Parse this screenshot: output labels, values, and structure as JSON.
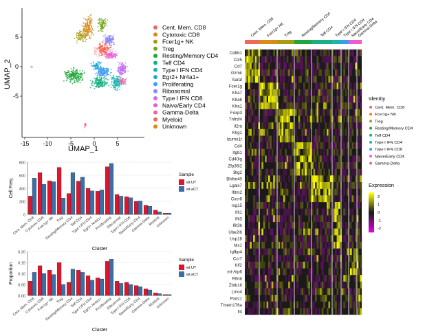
{
  "colors": {
    "wtUT": "#e0142a",
    "wtaCT": "#3a6fa8",
    "clusters": [
      "#f0675c",
      "#d98b1a",
      "#a79c12",
      "#73a51a",
      "#1ea83a",
      "#18b07e",
      "#18b5b0",
      "#1aa8d8",
      "#3d9cf2",
      "#8d86f4",
      "#c26cf2",
      "#ec5ad8",
      "#f461a6"
    ]
  },
  "umap": {
    "xlabel": "UMAP_1",
    "ylabel": "UMAP_2",
    "xticks": [
      "-15",
      "-10",
      "-5",
      "0",
      "5"
    ],
    "yticks": [
      "5",
      "0",
      "-5"
    ],
    "legend": [
      "Cent. Mem. CD8",
      "Cytotoxic CD8",
      "Fcer1g+ NK",
      "Treg",
      "Resting/Memory CD4",
      "Teff CD4",
      "Type I IFN CD4",
      "Egr2+ Nr4a1+",
      "Proliferating",
      "Ribosomal",
      "Type I IFN CD8",
      "Naive/Early CD4",
      "Gamma-Delta",
      "Myeloid",
      "Unknown"
    ]
  },
  "chart_data": [
    {
      "type": "bar",
      "ylabel": "Cell Freq",
      "xlabel": "Cluster",
      "ylim": [
        0,
        800
      ],
      "yticks": [
        0,
        200,
        400,
        600,
        800
      ],
      "legend_title": "Sample",
      "categories": [
        "Cent. Mem. CD8",
        "Cytotoxic CD8",
        "Fcer1g+ NK",
        "Treg",
        "Resting/Memory CD4",
        "Teff CD4",
        "Type I IFN CD4",
        "Egr2+ Nr4a1+",
        "Proliferating",
        "Ribosomal",
        "Type I IFN CD8",
        "Naive/Early CD4",
        "Gamma-Delta",
        "Myeloid",
        "Unknown"
      ],
      "series": [
        {
          "name": "wt.UT",
          "values": [
            280,
            640,
            515,
            720,
            320,
            510,
            400,
            355,
            730,
            305,
            270,
            200,
            140,
            65,
            18
          ]
        },
        {
          "name": "wt.aCT",
          "values": [
            555,
            460,
            500,
            250,
            640,
            570,
            360,
            375,
            780,
            280,
            255,
            205,
            125,
            40,
            20
          ]
        }
      ]
    },
    {
      "type": "bar",
      "ylabel": "Proportion",
      "xlabel": "Cluster",
      "ylim": [
        0,
        0.2
      ],
      "yticks": [
        "0.00",
        "0.05",
        "0.10",
        "0.15",
        "0.20"
      ],
      "legend_title": "Sample",
      "categories": [
        "Cent. Mem. CD8",
        "Cytotoxic CD8",
        "Fcer1g+ NK",
        "Treg",
        "Resting/Memory CD4",
        "Teff CD4",
        "Type I IFN CD4",
        "Egr2+ Nr4a1+",
        "Proliferating",
        "Ribosomal",
        "Type I IFN CD8",
        "Naive/Early CD4",
        "Gamma-Delta",
        "Myeloid",
        "Unknown"
      ],
      "series": [
        {
          "name": "wt.UT",
          "values": [
            0.065,
            0.135,
            0.115,
            0.15,
            0.06,
            0.115,
            0.09,
            0.08,
            0.155,
            0.065,
            0.06,
            0.045,
            0.03,
            0.012,
            0.004
          ]
        },
        {
          "name": "wt.aCT",
          "values": [
            0.105,
            0.1,
            0.095,
            0.05,
            0.12,
            0.105,
            0.07,
            0.075,
            0.165,
            0.055,
            0.05,
            0.04,
            0.025,
            0.008,
            0.004
          ]
        }
      ]
    },
    {
      "type": "heatmap",
      "top_labels": [
        "Cent. Mem. CD8",
        "Fcer1g+ NK",
        "Treg",
        "Resting/Memory CD4",
        "Teff CD4",
        "Type I IFN CD4",
        "Type I IFN CD8",
        "Naive/Early CD4",
        "Gamma-Delta"
      ],
      "genes": [
        "Cd8b1",
        "Ccl5",
        "Cd7",
        "Gzmk",
        "Saraf",
        "Fcer1g",
        "Klra7",
        "Klra6",
        "Klra1",
        "Foxp3",
        "Tnfrsf4",
        "Il2ra",
        "Klrg1",
        "Izumo1r",
        "Cd4",
        "Itgb1",
        "Cd40lg",
        "Zfp36l2",
        "Btg2",
        "Bhlhe40",
        "Lgals7",
        "Ifitm2",
        "Cxcr6",
        "Isg15",
        "Ifit1",
        "Ifit3",
        "Ifit3b",
        "Ube2l6",
        "Usp18",
        "Mx1",
        "Igfbp4",
        "Ccr7",
        "Klf2",
        "mt-Atp6",
        "Rflnb",
        "Zbtb16",
        "Lmo4",
        "Pxdc1",
        "Tmem176a",
        "Il4"
      ],
      "gene_groups": [
        0,
        0,
        0,
        0,
        0,
        1,
        1,
        1,
        1,
        2,
        2,
        2,
        2,
        2,
        3,
        3,
        3,
        3,
        3,
        4,
        4,
        4,
        4,
        5,
        5,
        5,
        5,
        5,
        5,
        5,
        7,
        7,
        7,
        7,
        8,
        8,
        8,
        8,
        8,
        8
      ],
      "identity_title": "Identity",
      "identity": [
        "Cent. Mem. CD8",
        "Fcer1g+ NK",
        "Treg",
        "Resting/Memory CD4",
        "Teff CD4",
        "Type I IFN CD4",
        "Type I IFN CD8",
        "Naive/Early CD4",
        "Gamma-Delta"
      ],
      "expression_title": "Expression",
      "expression_ticks": [
        "2",
        "1",
        "0",
        "-1",
        "-2"
      ],
      "range": [
        -2.5,
        2.5
      ]
    }
  ]
}
